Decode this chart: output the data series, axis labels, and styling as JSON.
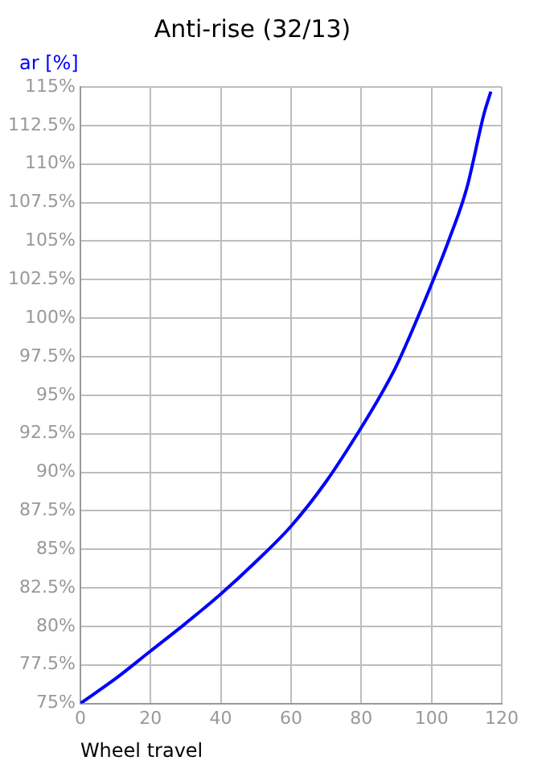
{
  "chart_data": {
    "type": "line",
    "title": "Anti-rise (32/13)",
    "xlabel": "Wheel travel",
    "ylabel": "ar [%]",
    "x": [
      0,
      10,
      20,
      30,
      40,
      50,
      60,
      70,
      80,
      86,
      90,
      100,
      105,
      110,
      115,
      116.9
    ],
    "series": [
      {
        "color": "#0000ff",
        "values": [
          75,
          76.6,
          78.4,
          80.2,
          82.1,
          84.2,
          86.5,
          89.4,
          92.9,
          95.2,
          96.9,
          102.2,
          105.1,
          108.4,
          113.3,
          114.7
        ]
      }
    ],
    "xlim": [
      0,
      120
    ],
    "xticks": [
      0,
      20,
      40,
      60,
      80,
      100,
      120
    ],
    "ylim": [
      75,
      115
    ],
    "yticks": [
      {
        "value": 75,
        "label": "75%"
      },
      {
        "value": 77.5,
        "label": "77.5%"
      },
      {
        "value": 80,
        "label": "80%"
      },
      {
        "value": 82.5,
        "label": "82.5%"
      },
      {
        "value": 85,
        "label": "85%"
      },
      {
        "value": 87.5,
        "label": "87.5%"
      },
      {
        "value": 90,
        "label": "90%"
      },
      {
        "value": 92.5,
        "label": "92.5%"
      },
      {
        "value": 95,
        "label": "95%"
      },
      {
        "value": 97.5,
        "label": "97.5%"
      },
      {
        "value": 100,
        "label": "100%"
      },
      {
        "value": 102.5,
        "label": "102.5%"
      },
      {
        "value": 105,
        "label": "105%"
      },
      {
        "value": 107.5,
        "label": "107.5%"
      },
      {
        "value": 110,
        "label": "110%"
      },
      {
        "value": 112.5,
        "label": "112.5%"
      },
      {
        "value": 115,
        "label": "115%"
      }
    ],
    "grid": true,
    "legend": false,
    "marker": "none",
    "line_style": "solid"
  }
}
